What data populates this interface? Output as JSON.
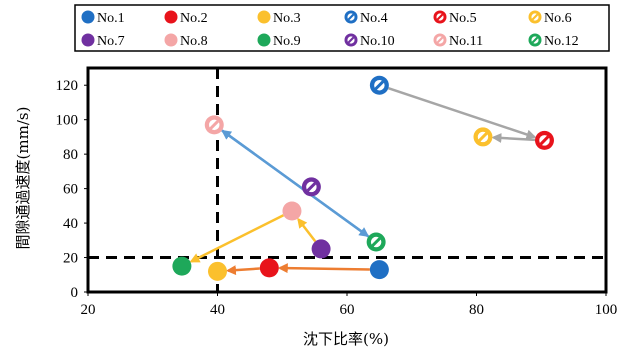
{
  "chart_data": {
    "type": "scatter",
    "title": "",
    "xlabel": "沈下比率(%)",
    "ylabel": "間隙通過速度(mm/s)",
    "xlim": [
      20,
      100
    ],
    "ylim": [
      0,
      130
    ],
    "xticks": [
      20,
      40,
      60,
      80,
      100
    ],
    "yticks": [
      0,
      20,
      40,
      60,
      80,
      100,
      120
    ],
    "grid": false,
    "legend_position": "top",
    "reference_lines": [
      {
        "orientation": "vertical",
        "value": 40,
        "style": "dashed"
      },
      {
        "orientation": "horizontal",
        "value": 20,
        "style": "dashed"
      }
    ],
    "series": [
      {
        "name": "No.1",
        "marker": "filled",
        "color": "#1f6fc4",
        "x": 65,
        "y": 13
      },
      {
        "name": "No.2",
        "marker": "filled",
        "color": "#e8131b",
        "x": 48,
        "y": 14
      },
      {
        "name": "No.3",
        "marker": "filled",
        "color": "#fbc02d",
        "x": 40,
        "y": 12
      },
      {
        "name": "No.4",
        "marker": "hollow",
        "color": "#1f6fc4",
        "x": 65,
        "y": 120
      },
      {
        "name": "No.5",
        "marker": "hollow",
        "color": "#e8131b",
        "x": 90.5,
        "y": 88
      },
      {
        "name": "No.6",
        "marker": "hollow",
        "color": "#fbc02d",
        "x": 81,
        "y": 90
      },
      {
        "name": "No.7",
        "marker": "filled",
        "color": "#7030a0",
        "x": 56,
        "y": 25
      },
      {
        "name": "No.8",
        "marker": "filled",
        "color": "#f4a6a6",
        "x": 51.5,
        "y": 47
      },
      {
        "name": "No.9",
        "marker": "filled",
        "color": "#1ea85a",
        "x": 34.5,
        "y": 15
      },
      {
        "name": "No.10",
        "marker": "hollow",
        "color": "#7030a0",
        "x": 54.5,
        "y": 61
      },
      {
        "name": "No.11",
        "marker": "hollow",
        "color": "#f4a6a6",
        "x": 39.5,
        "y": 97
      },
      {
        "name": "No.12",
        "marker": "hollow",
        "color": "#1ea85a",
        "x": 64.5,
        "y": 29
      }
    ],
    "arrows": [
      {
        "from": "No.4",
        "to": "No.5",
        "color": "#a6a6a6"
      },
      {
        "from": "No.5",
        "to": "No.6",
        "color": "#a6a6a6"
      },
      {
        "from": "No.1",
        "to": "No.2",
        "color": "#ed7d31"
      },
      {
        "from": "No.2",
        "to": "No.3",
        "color": "#ed7d31"
      },
      {
        "from": "No.7",
        "to": "No.8",
        "color": "#fbc02d"
      },
      {
        "from": "No.8",
        "to": "No.9",
        "color": "#fbc02d"
      },
      {
        "from": "No.12",
        "to": "No.11",
        "color": "#5b9bd5"
      },
      {
        "from": "No.11",
        "to": "No.12",
        "color": "#5b9bd5"
      }
    ]
  }
}
